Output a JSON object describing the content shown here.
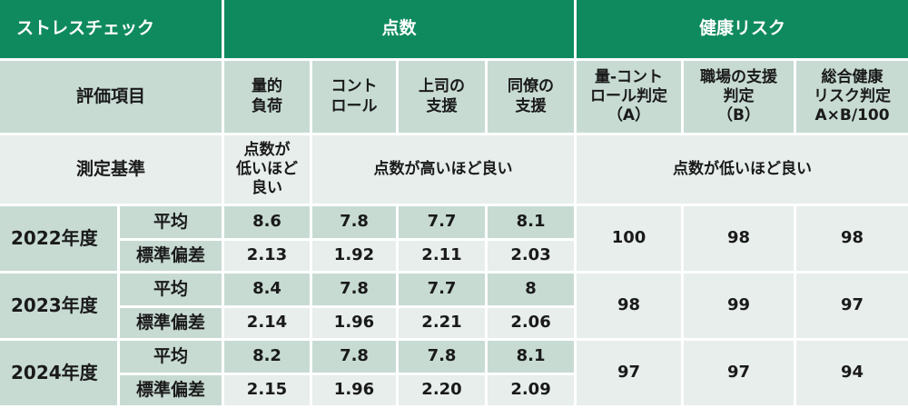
{
  "header": {
    "title": "ストレスチェック",
    "score": "点数",
    "risk": "健康リスク"
  },
  "items_label": "評価項目",
  "columns": [
    "量的\n負荷",
    "コント\nロール",
    "上司の\n支援",
    "同僚の\n支援"
  ],
  "risk_columns": [
    "量-コント\nロール判定\n（A）",
    "職場の支援\n判定\n（B）",
    "総合健康\nリスク判定\nA×B/100"
  ],
  "criteria": {
    "label": "測定基準",
    "low_good_first": "点数が\n低いほど\n良い",
    "high_good": "点数が高いほど良い",
    "low_good_risk": "点数が低いほど良い"
  },
  "row_labels": {
    "mean": "平均",
    "sd": "標準偏差"
  },
  "years": [
    {
      "year": "2022年度",
      "mean": [
        "8.6",
        "7.8",
        "7.7",
        "8.1"
      ],
      "sd": [
        "2.13",
        "1.92",
        "2.11",
        "2.03"
      ],
      "risk": [
        "100",
        "98",
        "98"
      ]
    },
    {
      "year": "2023年度",
      "mean": [
        "8.4",
        "7.8",
        "7.7",
        "8"
      ],
      "sd": [
        "2.14",
        "1.96",
        "2.21",
        "2.06"
      ],
      "risk": [
        "98",
        "99",
        "97"
      ]
    },
    {
      "year": "2024年度",
      "mean": [
        "8.2",
        "7.8",
        "7.8",
        "8.1"
      ],
      "sd": [
        "2.15",
        "1.96",
        "2.20",
        "2.09"
      ],
      "risk": [
        "97",
        "97",
        "94"
      ]
    }
  ],
  "colors": {
    "header_green": "#0f8a5f",
    "light_green": "#c7dbd3",
    "pale": "#e7eeeb"
  }
}
